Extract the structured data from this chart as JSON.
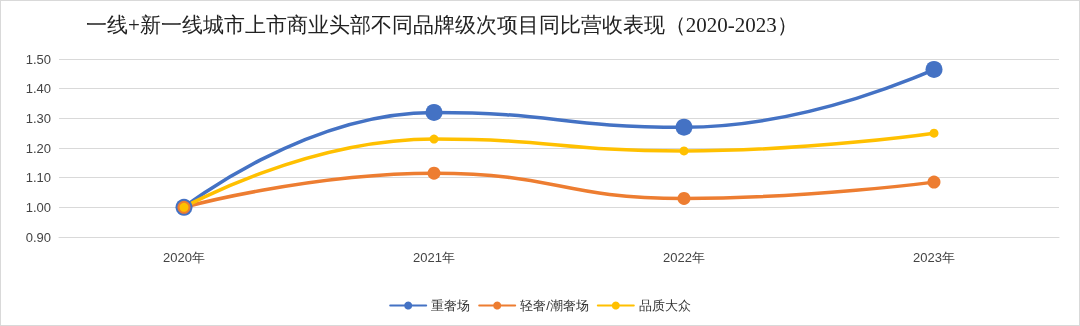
{
  "chart_data": {
    "type": "line",
    "title": "一线+新一线城市上市商业头部不同品牌级次项目同比营收表现（2020-2023）",
    "categories": [
      "2020年",
      "2021年",
      "2022年",
      "2023年"
    ],
    "series": [
      {
        "name": "重奢场",
        "color": "#4472c4",
        "values": [
          1.0,
          1.32,
          1.27,
          1.465
        ]
      },
      {
        "name": "轻奢/潮奢场",
        "color": "#ed7d31",
        "values": [
          1.0,
          1.115,
          1.03,
          1.085
        ]
      },
      {
        "name": "品质大众",
        "color": "#ffc000",
        "values": [
          1.0,
          1.23,
          1.19,
          1.25
        ]
      }
    ],
    "ylim": [
      0.9,
      1.5
    ],
    "yticks": [
      {
        "value": 0.9,
        "label": "0.90"
      },
      {
        "value": 1.0,
        "label": "1.00"
      },
      {
        "value": 1.1,
        "label": "1.10"
      },
      {
        "value": 1.2,
        "label": "1.20"
      },
      {
        "value": 1.3,
        "label": "1.30"
      },
      {
        "value": 1.4,
        "label": "1.40"
      },
      {
        "value": 1.5,
        "label": "1.50"
      }
    ],
    "grid": "y",
    "legend": "bottom",
    "marker": "circle",
    "line_style": "solid"
  }
}
